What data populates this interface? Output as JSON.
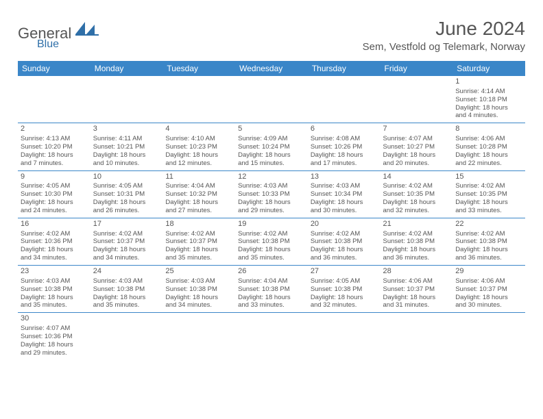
{
  "brand": {
    "part1": "General",
    "part2": "Blue"
  },
  "title": "June 2024",
  "location": "Sem, Vestfold og Telemark, Norway",
  "colors": {
    "header_bg": "#3a86c8",
    "header_text": "#ffffff",
    "text": "#555555",
    "rule": "#3a86c8",
    "background": "#ffffff"
  },
  "columns": [
    "Sunday",
    "Monday",
    "Tuesday",
    "Wednesday",
    "Thursday",
    "Friday",
    "Saturday"
  ],
  "weeks": [
    [
      null,
      null,
      null,
      null,
      null,
      null,
      {
        "day": "1",
        "sunrise": "Sunrise: 4:14 AM",
        "sunset": "Sunset: 10:18 PM",
        "daylight1": "Daylight: 18 hours",
        "daylight2": "and 4 minutes."
      }
    ],
    [
      {
        "day": "2",
        "sunrise": "Sunrise: 4:13 AM",
        "sunset": "Sunset: 10:20 PM",
        "daylight1": "Daylight: 18 hours",
        "daylight2": "and 7 minutes."
      },
      {
        "day": "3",
        "sunrise": "Sunrise: 4:11 AM",
        "sunset": "Sunset: 10:21 PM",
        "daylight1": "Daylight: 18 hours",
        "daylight2": "and 10 minutes."
      },
      {
        "day": "4",
        "sunrise": "Sunrise: 4:10 AM",
        "sunset": "Sunset: 10:23 PM",
        "daylight1": "Daylight: 18 hours",
        "daylight2": "and 12 minutes."
      },
      {
        "day": "5",
        "sunrise": "Sunrise: 4:09 AM",
        "sunset": "Sunset: 10:24 PM",
        "daylight1": "Daylight: 18 hours",
        "daylight2": "and 15 minutes."
      },
      {
        "day": "6",
        "sunrise": "Sunrise: 4:08 AM",
        "sunset": "Sunset: 10:26 PM",
        "daylight1": "Daylight: 18 hours",
        "daylight2": "and 17 minutes."
      },
      {
        "day": "7",
        "sunrise": "Sunrise: 4:07 AM",
        "sunset": "Sunset: 10:27 PM",
        "daylight1": "Daylight: 18 hours",
        "daylight2": "and 20 minutes."
      },
      {
        "day": "8",
        "sunrise": "Sunrise: 4:06 AM",
        "sunset": "Sunset: 10:28 PM",
        "daylight1": "Daylight: 18 hours",
        "daylight2": "and 22 minutes."
      }
    ],
    [
      {
        "day": "9",
        "sunrise": "Sunrise: 4:05 AM",
        "sunset": "Sunset: 10:30 PM",
        "daylight1": "Daylight: 18 hours",
        "daylight2": "and 24 minutes."
      },
      {
        "day": "10",
        "sunrise": "Sunrise: 4:05 AM",
        "sunset": "Sunset: 10:31 PM",
        "daylight1": "Daylight: 18 hours",
        "daylight2": "and 26 minutes."
      },
      {
        "day": "11",
        "sunrise": "Sunrise: 4:04 AM",
        "sunset": "Sunset: 10:32 PM",
        "daylight1": "Daylight: 18 hours",
        "daylight2": "and 27 minutes."
      },
      {
        "day": "12",
        "sunrise": "Sunrise: 4:03 AM",
        "sunset": "Sunset: 10:33 PM",
        "daylight1": "Daylight: 18 hours",
        "daylight2": "and 29 minutes."
      },
      {
        "day": "13",
        "sunrise": "Sunrise: 4:03 AM",
        "sunset": "Sunset: 10:34 PM",
        "daylight1": "Daylight: 18 hours",
        "daylight2": "and 30 minutes."
      },
      {
        "day": "14",
        "sunrise": "Sunrise: 4:02 AM",
        "sunset": "Sunset: 10:35 PM",
        "daylight1": "Daylight: 18 hours",
        "daylight2": "and 32 minutes."
      },
      {
        "day": "15",
        "sunrise": "Sunrise: 4:02 AM",
        "sunset": "Sunset: 10:35 PM",
        "daylight1": "Daylight: 18 hours",
        "daylight2": "and 33 minutes."
      }
    ],
    [
      {
        "day": "16",
        "sunrise": "Sunrise: 4:02 AM",
        "sunset": "Sunset: 10:36 PM",
        "daylight1": "Daylight: 18 hours",
        "daylight2": "and 34 minutes."
      },
      {
        "day": "17",
        "sunrise": "Sunrise: 4:02 AM",
        "sunset": "Sunset: 10:37 PM",
        "daylight1": "Daylight: 18 hours",
        "daylight2": "and 34 minutes."
      },
      {
        "day": "18",
        "sunrise": "Sunrise: 4:02 AM",
        "sunset": "Sunset: 10:37 PM",
        "daylight1": "Daylight: 18 hours",
        "daylight2": "and 35 minutes."
      },
      {
        "day": "19",
        "sunrise": "Sunrise: 4:02 AM",
        "sunset": "Sunset: 10:38 PM",
        "daylight1": "Daylight: 18 hours",
        "daylight2": "and 35 minutes."
      },
      {
        "day": "20",
        "sunrise": "Sunrise: 4:02 AM",
        "sunset": "Sunset: 10:38 PM",
        "daylight1": "Daylight: 18 hours",
        "daylight2": "and 36 minutes."
      },
      {
        "day": "21",
        "sunrise": "Sunrise: 4:02 AM",
        "sunset": "Sunset: 10:38 PM",
        "daylight1": "Daylight: 18 hours",
        "daylight2": "and 36 minutes."
      },
      {
        "day": "22",
        "sunrise": "Sunrise: 4:02 AM",
        "sunset": "Sunset: 10:38 PM",
        "daylight1": "Daylight: 18 hours",
        "daylight2": "and 36 minutes."
      }
    ],
    [
      {
        "day": "23",
        "sunrise": "Sunrise: 4:03 AM",
        "sunset": "Sunset: 10:38 PM",
        "daylight1": "Daylight: 18 hours",
        "daylight2": "and 35 minutes."
      },
      {
        "day": "24",
        "sunrise": "Sunrise: 4:03 AM",
        "sunset": "Sunset: 10:38 PM",
        "daylight1": "Daylight: 18 hours",
        "daylight2": "and 35 minutes."
      },
      {
        "day": "25",
        "sunrise": "Sunrise: 4:03 AM",
        "sunset": "Sunset: 10:38 PM",
        "daylight1": "Daylight: 18 hours",
        "daylight2": "and 34 minutes."
      },
      {
        "day": "26",
        "sunrise": "Sunrise: 4:04 AM",
        "sunset": "Sunset: 10:38 PM",
        "daylight1": "Daylight: 18 hours",
        "daylight2": "and 33 minutes."
      },
      {
        "day": "27",
        "sunrise": "Sunrise: 4:05 AM",
        "sunset": "Sunset: 10:38 PM",
        "daylight1": "Daylight: 18 hours",
        "daylight2": "and 32 minutes."
      },
      {
        "day": "28",
        "sunrise": "Sunrise: 4:06 AM",
        "sunset": "Sunset: 10:37 PM",
        "daylight1": "Daylight: 18 hours",
        "daylight2": "and 31 minutes."
      },
      {
        "day": "29",
        "sunrise": "Sunrise: 4:06 AM",
        "sunset": "Sunset: 10:37 PM",
        "daylight1": "Daylight: 18 hours",
        "daylight2": "and 30 minutes."
      }
    ],
    [
      {
        "day": "30",
        "sunrise": "Sunrise: 4:07 AM",
        "sunset": "Sunset: 10:36 PM",
        "daylight1": "Daylight: 18 hours",
        "daylight2": "and 29 minutes."
      },
      null,
      null,
      null,
      null,
      null,
      null
    ]
  ]
}
